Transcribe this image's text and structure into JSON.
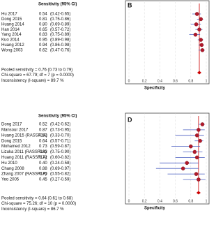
{
  "panels": [
    {
      "header": "Sensitivity (95% CI)",
      "studies": [
        {
          "name": "Hu 2017",
          "estimate": "0.54",
          "ci": "(0.42-0.65)"
        },
        {
          "name": "Dong 2015",
          "estimate": "0.81",
          "ci": "(0.75-0.86)"
        },
        {
          "name": "Huang 2014",
          "estimate": "0.80",
          "ci": "(0.69-0.89)"
        },
        {
          "name": "Han 2014",
          "estimate": "0.65",
          "ci": "(0.57-0.72)"
        },
        {
          "name": "Yang 2014",
          "estimate": "0.83",
          "ci": "(0.75-0.89)"
        },
        {
          "name": "Kuo 2014",
          "estimate": "0.95",
          "ci": "(0.89-0.98)"
        },
        {
          "name": "Huang 2012",
          "estimate": "0.94",
          "ci": "(0.86-0.98)"
        },
        {
          "name": "Wong 2003",
          "estimate": "0.62",
          "ci": "(0.47-0.76)"
        }
      ],
      "summary": [
        "Pooled sensitivity = 0.76 (0.73 to 0.79)",
        "Chi-square = 67.79; df = 7 (p = 0.0000)",
        "Inconsistency (I-square) = 89.7 %"
      ]
    },
    {
      "header": "Sensitivity (95% CI)",
      "studies": [
        {
          "name": "Dong 2017",
          "estimate": "0.52",
          "ci": "(0.42-0.62)"
        },
        {
          "name": "Mansour 2017",
          "estimate": "0.87",
          "ci": "(0.73-0.95)"
        },
        {
          "name": "Huang 2015 (RASSF1A)",
          "estimate": "0.52",
          "ci": "(0.33-0.70)"
        },
        {
          "name": "Dong 2015",
          "estimate": "0.64",
          "ci": "(0.57-0.71)"
        },
        {
          "name": "Mohamed 2012",
          "estimate": "0.73",
          "ci": "(0.59-0.87)"
        },
        {
          "name": "Lizuka 2011 (RASSF1A)",
          "estimate": "0.83",
          "ci": "(0.75-0.90)"
        },
        {
          "name": "Huang 2011 (RASSF1A)",
          "estimate": "0.72",
          "ci": "(0.60-0.82)"
        },
        {
          "name": "Hu 2010",
          "estimate": "0.40",
          "ci": "(0.24-0.58)"
        },
        {
          "name": "Chang 2008",
          "estimate": "0.88",
          "ci": "(0.69-0.97)"
        },
        {
          "name": "Zhang 2007 (RASSF1A)",
          "estimate": "0.70",
          "ci": "(0.55-0.82)"
        },
        {
          "name": "Yeo 2005",
          "estimate": "0.45",
          "ci": "(0.27-0.59)"
        }
      ],
      "summary": [
        "Pooled sensitivity = 0.64 (0.61 to 0.68)",
        "Chi-square = 75.26; df = 10 (p = 0.0000)",
        "Inconsistency (I-square) = 86.7 %"
      ]
    }
  ],
  "plots": [
    {
      "label": "B",
      "x_label": "Specificity",
      "xlim": [
        0,
        1
      ],
      "xticks": [
        0,
        0.2,
        0.4,
        0.6,
        0.8,
        1
      ],
      "specificity": [
        0.88,
        0.93,
        0.87,
        0.91,
        0.86,
        0.93,
        0.94,
        0.95
      ],
      "ci_low": [
        0.82,
        0.88,
        0.8,
        0.86,
        0.78,
        0.89,
        0.9,
        0.9
      ],
      "ci_high": [
        0.93,
        0.96,
        0.93,
        0.95,
        0.92,
        0.96,
        0.97,
        0.98
      ],
      "pooled": 0.91
    },
    {
      "label": "D",
      "x_label": "Specificity",
      "xlim": [
        0,
        1
      ],
      "xticks": [
        0,
        0.2,
        0.4,
        0.6,
        0.8,
        1
      ],
      "specificity": [
        0.95,
        0.9,
        0.88,
        0.92,
        0.8,
        0.85,
        0.88,
        0.75,
        0.7,
        0.87,
        0.9
      ],
      "ci_low": [
        0.9,
        0.7,
        0.6,
        0.85,
        0.55,
        0.7,
        0.6,
        0.4,
        0.35,
        0.5,
        0.7
      ],
      "ci_high": [
        0.98,
        0.98,
        0.97,
        0.96,
        0.92,
        0.95,
        0.98,
        0.9,
        0.9,
        0.98,
        0.99
      ],
      "pooled": 0.9
    }
  ]
}
